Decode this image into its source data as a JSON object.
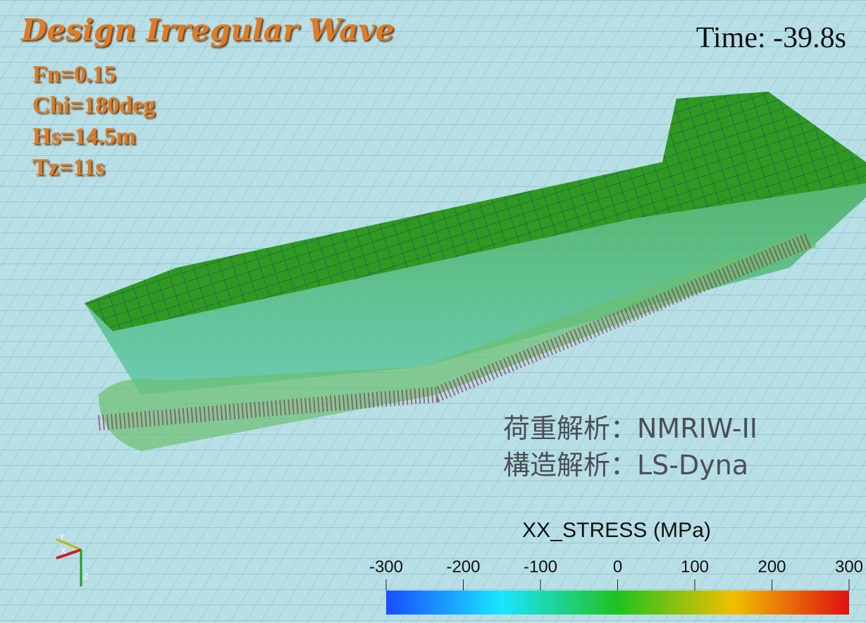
{
  "title": "Design Irregular Wave",
  "parameters": [
    "Fn=0.15",
    "Chi=180deg",
    "Hs=14.5m",
    "Tz=11s"
  ],
  "time": "Time: -39.8s",
  "analysis": [
    "荷重解析：NMRIW-II",
    "構造解析：LS-Dyna"
  ],
  "colorbar": {
    "title": "XX_STRESS (MPa)",
    "range": [
      -300,
      300
    ],
    "ticks": [
      -300,
      -200,
      -100,
      0,
      100,
      200,
      300
    ]
  },
  "axes": [
    "Y",
    "X",
    "Z"
  ]
}
